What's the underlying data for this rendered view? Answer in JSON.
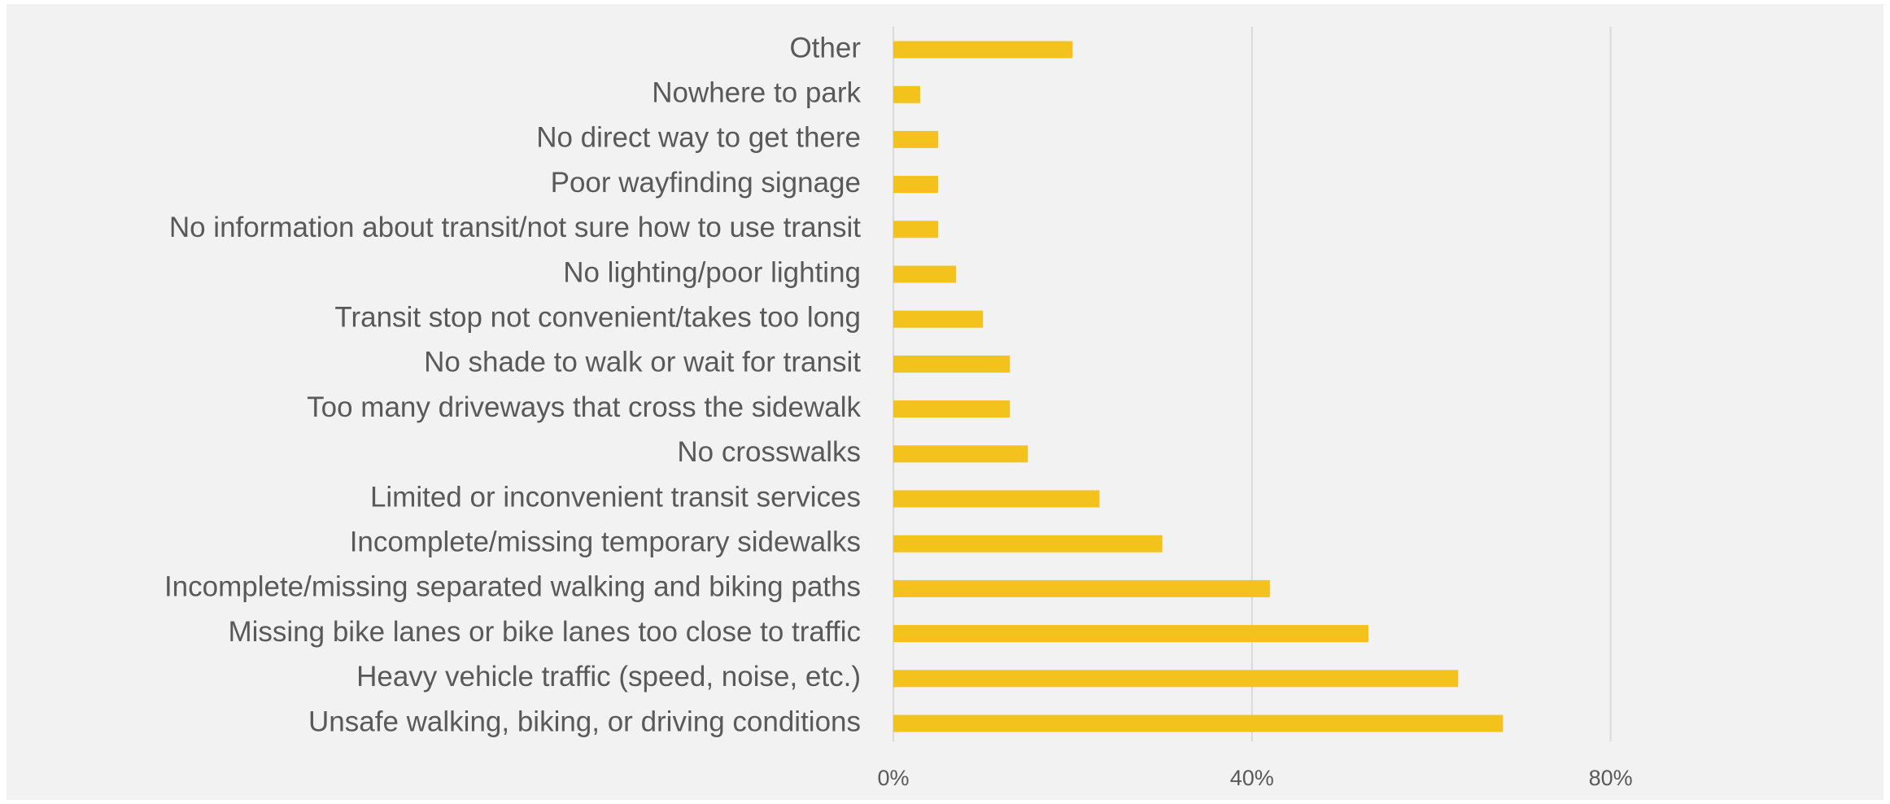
{
  "chart_data": {
    "type": "barh",
    "categories": [
      "Other",
      "Nowhere to park",
      "No direct way to get there",
      "Poor wayfinding signage",
      "No information about transit/not sure how to use transit",
      "No lighting/poor lighting",
      "Transit stop not convenient/takes too long",
      "No shade to walk or wait for transit",
      "Too many driveways that cross the sidewalk",
      "No crosswalks",
      "Limited or inconvenient transit services",
      "Incomplete/missing temporary sidewalks",
      "Incomplete/missing separated walking and biking paths",
      "Missing bike lanes or bike lanes too close to traffic",
      "Heavy vehicle traffic (speed, noise, etc.)",
      "Unsafe walking, biking, or driving conditions"
    ],
    "values": [
      20,
      3,
      5,
      5,
      5,
      7,
      10,
      13,
      13,
      15,
      23,
      30,
      42,
      53,
      63,
      68
    ],
    "color": "#f4c21c",
    "xlim": [
      0,
      110
    ],
    "xticks": [
      {
        "value": 0,
        "label": "0%"
      },
      {
        "value": 40,
        "label": "40%"
      },
      {
        "value": 80,
        "label": "80%"
      }
    ],
    "grid": true
  }
}
